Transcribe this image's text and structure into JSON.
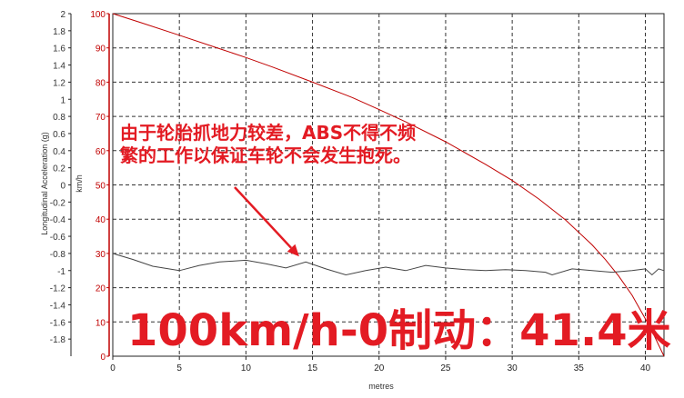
{
  "chart_data": {
    "type": "line",
    "xlabel": "metres",
    "x_ticks": [
      0,
      5,
      10,
      15,
      20,
      25,
      30,
      35,
      40
    ],
    "xlim": [
      0,
      41.4
    ],
    "left_axis": {
      "label": "Longitudinal Acceleration (g)",
      "ticks": [
        "2",
        "1.8",
        "1.6",
        "1.4",
        "1.2",
        "1",
        "0.8",
        "0.6",
        "0.4",
        "0.2",
        "0",
        "-0.2",
        "-0.4",
        "-0.6",
        "-0.8",
        "-1",
        "-1.2",
        "-1.4",
        "-1.6",
        "-1.8"
      ],
      "ylim": [
        -2,
        2
      ],
      "color": "#333333"
    },
    "right_axis": {
      "label": "km/h",
      "ticks": [
        "100",
        "90",
        "80",
        "70",
        "60",
        "50",
        "40",
        "30",
        "20",
        "10",
        "0"
      ],
      "ylim": [
        0,
        100
      ],
      "color": "#c00000"
    },
    "series": [
      {
        "axis": "right",
        "color": "#c00000",
        "x": [
          0,
          2,
          5,
          8,
          10,
          12,
          15,
          18,
          20,
          22,
          25,
          28,
          30,
          32,
          34,
          36,
          37,
          38,
          39,
          40,
          40.5,
          41,
          41.4
        ],
        "values": [
          100,
          97.5,
          93.7,
          89.8,
          87.2,
          84.4,
          80,
          75.5,
          72,
          68.4,
          62.6,
          56,
          51.3,
          45.9,
          39.8,
          32.5,
          28.2,
          23.4,
          17.8,
          10.9,
          7.4,
          3.3,
          0
        ]
      },
      {
        "axis": "left",
        "color": "#444444",
        "x": [
          0,
          1.5,
          3,
          5,
          6.5,
          8,
          10,
          11.5,
          13,
          14.5,
          16,
          17.5,
          19,
          20.5,
          22,
          23.5,
          25,
          26.5,
          28,
          29.5,
          31,
          32.5,
          33,
          34.5,
          36,
          37.5,
          39,
          40,
          40.5,
          41,
          41.4
        ],
        "values": [
          -0.8,
          -0.87,
          -0.95,
          -1.0,
          -0.94,
          -0.9,
          -0.88,
          -0.92,
          -0.97,
          -0.9,
          -0.98,
          -1.05,
          -1.0,
          -0.96,
          -1.0,
          -0.94,
          -0.97,
          -0.99,
          -1.0,
          -0.99,
          -1.0,
          -1.02,
          -1.05,
          -0.98,
          -1.0,
          -1.02,
          -1.0,
          -0.98,
          -1.05,
          -0.98,
          -1.0
        ]
      }
    ],
    "grid": true
  },
  "annotation": {
    "text": "由于轮胎抓地力较差，ABS不得不频繁的工作以保证车轮不会发生抱死。",
    "arrow_target": {
      "x": 14,
      "y": -0.9
    }
  },
  "headline": "100km/h-0制动：41.4米"
}
